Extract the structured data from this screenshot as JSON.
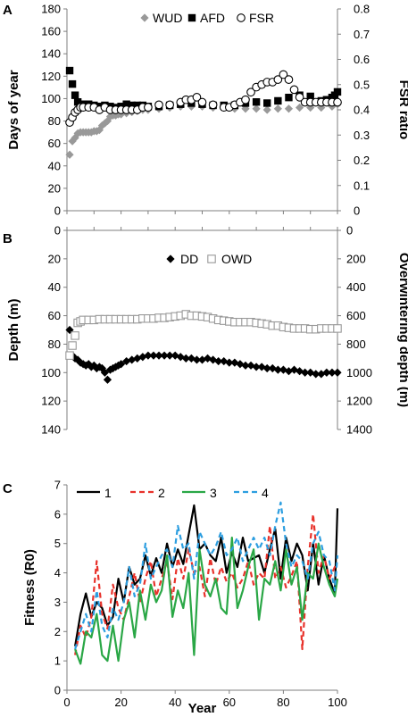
{
  "chart_data": [
    {
      "panel": "A",
      "type": "scatter",
      "ylabel": "Days of year",
      "y2label": "FSR ratio",
      "xlim": [
        0,
        100
      ],
      "ylim": [
        0,
        180
      ],
      "y2lim": [
        0,
        0.8
      ],
      "yticks": [
        "0",
        "20",
        "40",
        "60",
        "80",
        "100",
        "120",
        "140",
        "160",
        "180"
      ],
      "y2ticks": [
        "0",
        "0.1",
        "0.2",
        "0.3",
        "0.4",
        "0.5",
        "0.6",
        "0.7",
        "0.8"
      ],
      "legend_position": "top",
      "series": [
        {
          "name": "WUD",
          "axis": "left",
          "color": "#999999",
          "marker": "diamond",
          "x": [
            1,
            2,
            3,
            4,
            5,
            6,
            7,
            8,
            9,
            10,
            11,
            12,
            13,
            14,
            15,
            16,
            17,
            18,
            19,
            20,
            22,
            24,
            26,
            28,
            30,
            34,
            38,
            42,
            46,
            50,
            54,
            58,
            62,
            66,
            70,
            74,
            78,
            82,
            86,
            90,
            94,
            98,
            100
          ],
          "y": [
            50,
            62,
            65,
            69,
            70,
            70,
            70,
            70,
            70,
            71,
            71,
            72,
            76,
            78,
            80,
            84,
            85,
            85,
            86,
            86,
            87,
            88,
            89,
            90,
            90,
            91,
            92,
            93,
            93,
            93,
            92,
            92,
            91,
            91,
            91,
            90,
            91,
            91,
            92,
            92,
            92,
            93,
            95
          ]
        },
        {
          "name": "AFD",
          "axis": "left",
          "color": "#000000",
          "marker": "square",
          "x": [
            1,
            2,
            3,
            4,
            6,
            8,
            10,
            12,
            14,
            16,
            18,
            20,
            22,
            24,
            26,
            28,
            30,
            34,
            38,
            42,
            46,
            50,
            54,
            58,
            62,
            66,
            70,
            74,
            78,
            82,
            86,
            90,
            94,
            96,
            98,
            99,
            100
          ],
          "y": [
            125,
            113,
            103,
            97,
            95,
            95,
            94,
            93,
            94,
            93,
            92,
            93,
            95,
            94,
            94,
            94,
            93,
            93,
            94,
            95,
            96,
            95,
            94,
            94,
            94,
            96,
            97,
            96,
            98,
            101,
            103,
            102,
            98,
            99,
            101,
            103,
            106
          ]
        },
        {
          "name": "FSR",
          "axis": "right",
          "color": "#000000",
          "marker": "circle",
          "x": [
            1,
            2,
            3,
            4,
            5,
            6,
            8,
            10,
            12,
            14,
            16,
            18,
            20,
            22,
            24,
            26,
            28,
            30,
            34,
            38,
            42,
            44,
            46,
            48,
            50,
            54,
            58,
            60,
            62,
            64,
            66,
            68,
            70,
            72,
            74,
            76,
            78,
            80,
            82,
            84,
            86,
            88,
            90,
            92,
            94,
            96,
            98,
            100
          ],
          "y": [
            0.35,
            0.37,
            0.39,
            0.4,
            0.41,
            0.41,
            0.41,
            0.41,
            0.4,
            0.41,
            0.4,
            0.4,
            0.4,
            0.4,
            0.4,
            0.4,
            0.41,
            0.41,
            0.42,
            0.42,
            0.43,
            0.44,
            0.44,
            0.45,
            0.43,
            0.42,
            0.41,
            0.41,
            0.42,
            0.43,
            0.44,
            0.47,
            0.49,
            0.5,
            0.51,
            0.51,
            0.52,
            0.54,
            0.52,
            0.48,
            0.45,
            0.43,
            0.43,
            0.43,
            0.43,
            0.43,
            0.43,
            0.43
          ]
        }
      ]
    },
    {
      "panel": "B",
      "type": "scatter",
      "ylabel": "Depth (m)",
      "y2label": "Overwintering depth (m)",
      "xlim": [
        0,
        100
      ],
      "ylim": [
        140,
        0
      ],
      "y2lim": [
        1400,
        0
      ],
      "yticks": [
        "0",
        "20",
        "40",
        "60",
        "80",
        "100",
        "120",
        "140"
      ],
      "y2ticks": [
        "0",
        "200",
        "400",
        "600",
        "800",
        "1000",
        "1200",
        "1400"
      ],
      "legend_position": "top",
      "series": [
        {
          "name": "DD",
          "axis": "left",
          "color": "#000000",
          "marker": "diamond",
          "x": [
            1,
            2,
            3,
            4,
            5,
            6,
            7,
            8,
            9,
            10,
            11,
            12,
            13,
            14,
            15,
            16,
            17,
            18,
            19,
            20,
            22,
            24,
            26,
            28,
            30,
            32,
            34,
            36,
            38,
            40,
            42,
            44,
            46,
            48,
            50,
            52,
            54,
            56,
            58,
            60,
            62,
            64,
            66,
            68,
            70,
            72,
            74,
            76,
            78,
            80,
            82,
            84,
            86,
            88,
            90,
            92,
            94,
            96,
            98,
            100
          ],
          "y": [
            70,
            88,
            90,
            91,
            93,
            94,
            95,
            94,
            96,
            95,
            97,
            96,
            97,
            100,
            105,
            98,
            97,
            96,
            95,
            94,
            92,
            91,
            90,
            89,
            88,
            88,
            88,
            88,
            88,
            88,
            89,
            90,
            90,
            91,
            91,
            90,
            91,
            92,
            92,
            93,
            93,
            94,
            95,
            95,
            96,
            96,
            97,
            97,
            98,
            98,
            99,
            98,
            99,
            100,
            100,
            101,
            101,
            100,
            100,
            100
          ]
        },
        {
          "name": "OWD",
          "axis": "right",
          "color": "#999999",
          "marker": "square",
          "x": [
            1,
            2,
            3,
            4,
            5,
            6,
            8,
            10,
            12,
            14,
            16,
            18,
            20,
            22,
            24,
            26,
            28,
            30,
            32,
            34,
            36,
            38,
            40,
            42,
            44,
            46,
            48,
            50,
            52,
            54,
            56,
            58,
            60,
            62,
            64,
            66,
            68,
            70,
            72,
            74,
            76,
            78,
            80,
            82,
            84,
            86,
            88,
            90,
            92,
            94,
            96,
            98,
            100
          ],
          "y": [
            880,
            810,
            740,
            650,
            640,
            630,
            630,
            630,
            625,
            625,
            625,
            625,
            625,
            625,
            625,
            625,
            620,
            620,
            620,
            615,
            615,
            610,
            605,
            600,
            590,
            600,
            600,
            605,
            610,
            620,
            630,
            635,
            640,
            645,
            645,
            645,
            645,
            650,
            655,
            660,
            670,
            670,
            680,
            685,
            690,
            690,
            690,
            695,
            695,
            690,
            690,
            690,
            690
          ]
        }
      ]
    },
    {
      "panel": "C",
      "type": "line",
      "xlabel": "Year",
      "ylabel": "Fitness (R0)",
      "xlim": [
        0,
        100
      ],
      "ylim": [
        0,
        7
      ],
      "xticks": [
        "0",
        "20",
        "40",
        "60",
        "80",
        "100"
      ],
      "yticks": [
        "0",
        "1",
        "2",
        "3",
        "4",
        "5",
        "6",
        "7"
      ],
      "legend_position": "top",
      "x": [
        3,
        5,
        7,
        9,
        11,
        13,
        15,
        17,
        19,
        21,
        23,
        25,
        27,
        29,
        31,
        33,
        35,
        37,
        39,
        41,
        43,
        45,
        47,
        49,
        51,
        53,
        55,
        57,
        59,
        61,
        63,
        65,
        67,
        69,
        71,
        73,
        75,
        77,
        79,
        81,
        83,
        85,
        87,
        89,
        91,
        93,
        95,
        97,
        99,
        100
      ],
      "series": [
        {
          "name": "1",
          "color": "#000000",
          "dash": "solid",
          "values": [
            1.5,
            2.6,
            3.3,
            2.5,
            3.0,
            2.8,
            2.2,
            2.5,
            3.8,
            3.0,
            4.2,
            3.6,
            3.8,
            4.6,
            3.9,
            4.5,
            4.0,
            5.0,
            4.2,
            4.8,
            4.3,
            5.3,
            6.3,
            4.8,
            5.0,
            4.6,
            4.4,
            5.2,
            4.0,
            4.7,
            4.2,
            5.2,
            4.4,
            4.5,
            4.6,
            4.0,
            4.8,
            5.5,
            3.8,
            5.2,
            4.4,
            5.0,
            4.6,
            3.4,
            5.0,
            3.6,
            4.6,
            3.8,
            3.3,
            6.2
          ]
        },
        {
          "name": "2",
          "color": "#e8322b",
          "dash": "6,4",
          "values": [
            1.2,
            2.2,
            1.8,
            2.5,
            4.4,
            2.6,
            2.1,
            3.6,
            2.8,
            2.4,
            3.2,
            4.0,
            3.0,
            3.8,
            4.4,
            3.2,
            3.8,
            4.4,
            3.1,
            4.5,
            3.8,
            4.8,
            4.0,
            4.2,
            3.2,
            4.5,
            3.6,
            4.2,
            3.7,
            4.0,
            3.5,
            3.8,
            4.4,
            3.6,
            4.0,
            3.8,
            5.6,
            3.8,
            4.2,
            3.5,
            3.9,
            4.4,
            1.4,
            4.2,
            6.0,
            4.0,
            4.6,
            3.8,
            4.2,
            4.1
          ]
        },
        {
          "name": "3",
          "color": "#2aa746",
          "dash": "solid",
          "values": [
            1.4,
            0.9,
            2.0,
            1.8,
            2.6,
            1.2,
            1.0,
            2.2,
            1.0,
            2.4,
            3.0,
            1.8,
            3.4,
            2.4,
            3.6,
            3.0,
            3.4,
            4.6,
            2.5,
            3.4,
            2.8,
            4.0,
            1.2,
            4.8,
            3.6,
            3.2,
            3.8,
            2.8,
            2.6,
            5.2,
            2.8,
            3.4,
            4.2,
            4.8,
            2.4,
            3.8,
            3.6,
            4.4,
            3.4,
            4.8,
            3.6,
            4.2,
            2.4,
            4.0,
            3.8,
            5.0,
            4.2,
            3.6,
            3.2,
            3.8
          ]
        },
        {
          "name": "4",
          "color": "#2c9ee0",
          "dash": "6,4",
          "values": [
            1.4,
            2.0,
            2.6,
            2.0,
            3.4,
            2.2,
            1.8,
            2.8,
            2.4,
            3.0,
            4.2,
            3.2,
            3.6,
            5.0,
            3.8,
            4.2,
            4.6,
            4.8,
            4.2,
            5.6,
            4.8,
            5.0,
            3.8,
            5.4,
            5.0,
            4.6,
            4.9,
            5.4,
            4.6,
            4.8,
            5.2,
            4.4,
            4.8,
            5.2,
            4.8,
            5.2,
            4.6,
            5.6,
            6.4,
            5.0,
            4.2,
            4.6,
            4.4,
            3.8,
            5.0,
            5.4,
            4.6,
            4.4,
            3.4,
            4.6
          ]
        }
      ]
    }
  ],
  "panels": {
    "a": {
      "label": "A"
    },
    "b": {
      "label": "B"
    },
    "c": {
      "label": "C"
    }
  }
}
